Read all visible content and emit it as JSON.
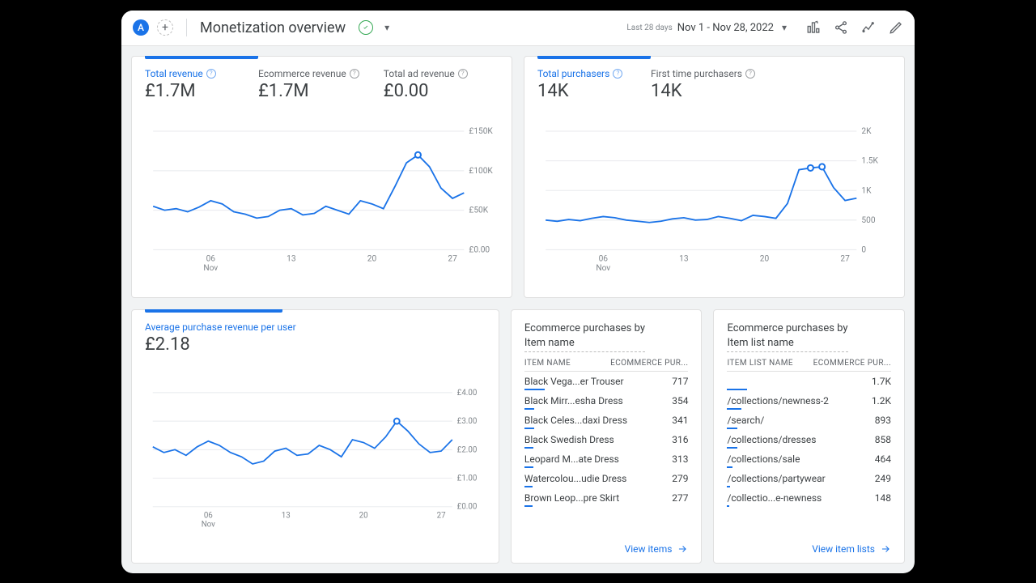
{
  "header": {
    "avatar_letter": "A",
    "title": "Monetization overview",
    "date_label": "Last 28 days",
    "date_range": "Nov 1 - Nov 28, 2022"
  },
  "revenue_card": {
    "metrics": [
      {
        "label": "Total revenue",
        "value": "£1.7M",
        "active": true
      },
      {
        "label": "Ecommerce revenue",
        "value": "£1.7M",
        "active": false
      },
      {
        "label": "Total ad revenue",
        "value": "£0.00",
        "active": false
      }
    ],
    "chart": {
      "type": "line",
      "y_ticks": [
        "£150K",
        "£100K",
        "£50K",
        "£0.00"
      ],
      "y_values": [
        150,
        100,
        50,
        0
      ],
      "x_ticks": [
        "06",
        "13",
        "20",
        "27"
      ],
      "x_sublabel": "Nov",
      "series_color": "#1a73e8",
      "grid_color": "#e8eaed",
      "data": [
        55,
        50,
        52,
        48,
        54,
        62,
        58,
        48,
        45,
        40,
        42,
        50,
        52,
        44,
        46,
        55,
        50,
        45,
        62,
        58,
        52,
        80,
        110,
        120,
        105,
        78,
        65,
        72
      ],
      "markers": [
        {
          "index": 23,
          "value": 120
        }
      ]
    }
  },
  "purchasers_card": {
    "metrics": [
      {
        "label": "Total purchasers",
        "value": "14K",
        "active": true
      },
      {
        "label": "First time purchasers",
        "value": "14K",
        "active": false
      }
    ],
    "chart": {
      "type": "line",
      "y_ticks": [
        "2K",
        "1.5K",
        "1K",
        "500",
        "0"
      ],
      "y_values": [
        2000,
        1500,
        1000,
        500,
        0
      ],
      "x_ticks": [
        "06",
        "13",
        "20",
        "27"
      ],
      "x_sublabel": "Nov",
      "series_color": "#1a73e8",
      "grid_color": "#e8eaed",
      "data": [
        500,
        480,
        510,
        490,
        530,
        560,
        540,
        500,
        480,
        460,
        480,
        520,
        540,
        500,
        510,
        560,
        530,
        490,
        580,
        560,
        530,
        780,
        1350,
        1380,
        1400,
        1050,
        830,
        870
      ],
      "markers": [
        {
          "index": 23,
          "value": 1380
        },
        {
          "index": 24,
          "value": 1400
        }
      ]
    }
  },
  "arpu_card": {
    "label": "Average purchase revenue per user",
    "value": "£2.18",
    "chart": {
      "type": "line",
      "y_ticks": [
        "£4.00",
        "£3.00",
        "£2.00",
        "£1.00",
        "£0.00"
      ],
      "y_values": [
        4,
        3,
        2,
        1,
        0
      ],
      "x_ticks": [
        "06",
        "13",
        "20",
        "27"
      ],
      "x_sublabel": "Nov",
      "series_color": "#1a73e8",
      "grid_color": "#e8eaed",
      "data": [
        2.1,
        1.9,
        2.0,
        1.8,
        2.1,
        2.3,
        2.15,
        1.9,
        1.75,
        1.5,
        1.6,
        1.95,
        2.05,
        1.8,
        1.85,
        2.15,
        2.0,
        1.75,
        2.35,
        2.25,
        2.05,
        2.45,
        3.0,
        2.65,
        2.2,
        1.9,
        1.95,
        2.35
      ],
      "markers": [
        {
          "index": 22,
          "value": 3.0
        }
      ]
    }
  },
  "items_table": {
    "title_line1": "Ecommerce purchases by",
    "title_line2": "Item name",
    "col1": "ITEM NAME",
    "col2": "ECOMMERCE PUR...",
    "rows": [
      {
        "name": "Black Vega...er Trouser",
        "val": "717",
        "bar": 100
      },
      {
        "name": "Black Mirr...esha Dress",
        "val": "354",
        "bar": 50
      },
      {
        "name": "Black Celes...daxi Dress",
        "val": "341",
        "bar": 47
      },
      {
        "name": "Black Swedish Dress",
        "val": "316",
        "bar": 44
      },
      {
        "name": "Leopard M...ate Dress",
        "val": "313",
        "bar": 44
      },
      {
        "name": "Watercolou...udie Dress",
        "val": "279",
        "bar": 39
      },
      {
        "name": "Brown Leop...pre Skirt",
        "val": "277",
        "bar": 39
      }
    ],
    "link": "View items"
  },
  "lists_table": {
    "title_line1": "Ecommerce purchases by",
    "title_line2": "Item list name",
    "col1": "ITEM LIST NAME",
    "col2": "ECOMMERCE PUR...",
    "rows": [
      {
        "name": "",
        "val": "1.7K",
        "bar": 100
      },
      {
        "name": "/collections/newness-2",
        "val": "1.2K",
        "bar": 70
      },
      {
        "name": "/search/",
        "val": "893",
        "bar": 52
      },
      {
        "name": "/collections/dresses",
        "val": "858",
        "bar": 50
      },
      {
        "name": "/collections/sale",
        "val": "464",
        "bar": 27
      },
      {
        "name": "/collections/partywear",
        "val": "249",
        "bar": 15
      },
      {
        "name": "/collectio...e-newness",
        "val": "148",
        "bar": 9
      }
    ],
    "link": "View item lists"
  },
  "colors": {
    "accent": "#1a73e8",
    "text": "#3c4043",
    "muted": "#5f6368",
    "grid": "#e8eaed",
    "bg": "#f1f3f4"
  }
}
